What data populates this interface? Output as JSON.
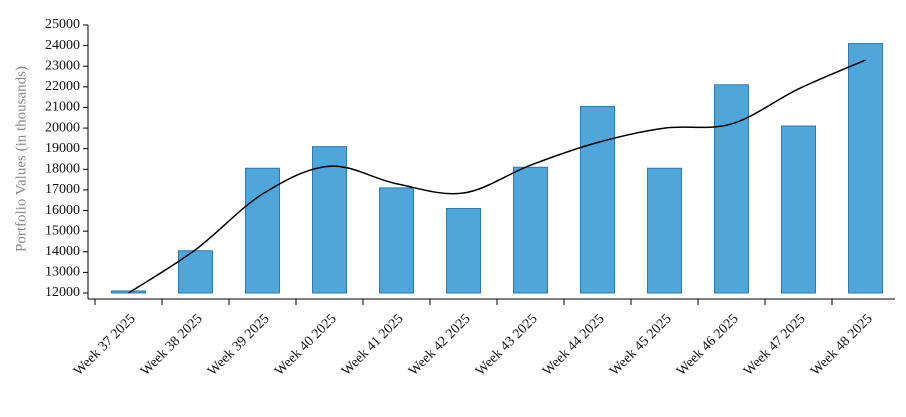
{
  "chart_data": {
    "type": "bar",
    "y_label": "Portfolio Values (in thousands)",
    "categories": [
      "Week 37 2025",
      "Week 38 2025",
      "Week 39 2025",
      "Week 40 2025",
      "Week 41 2025",
      "Week 42 2025",
      "Week 43 2025",
      "Week 44 2025",
      "Week 45 2025",
      "Week 46 2025",
      "Week 47 2025",
      "Week 48 2025"
    ],
    "series": [
      {
        "type": "bar",
        "color": "#4fa6db",
        "values": [
          12100,
          14050,
          18050,
          19100,
          17100,
          16100,
          18100,
          21050,
          18050,
          22100,
          20100,
          24100
        ]
      },
      {
        "type": "line",
        "color": "#000000",
        "values": [
          12000,
          14100,
          16800,
          18150,
          17300,
          16850,
          18200,
          19300,
          20000,
          20200,
          21900,
          23300
        ]
      }
    ],
    "ylim": [
      12000,
      25000
    ],
    "yticks": [
      12000,
      13000,
      14000,
      15000,
      16000,
      17000,
      18000,
      19000,
      20000,
      21000,
      22000,
      23000,
      24000,
      25000
    ],
    "grid": false
  }
}
